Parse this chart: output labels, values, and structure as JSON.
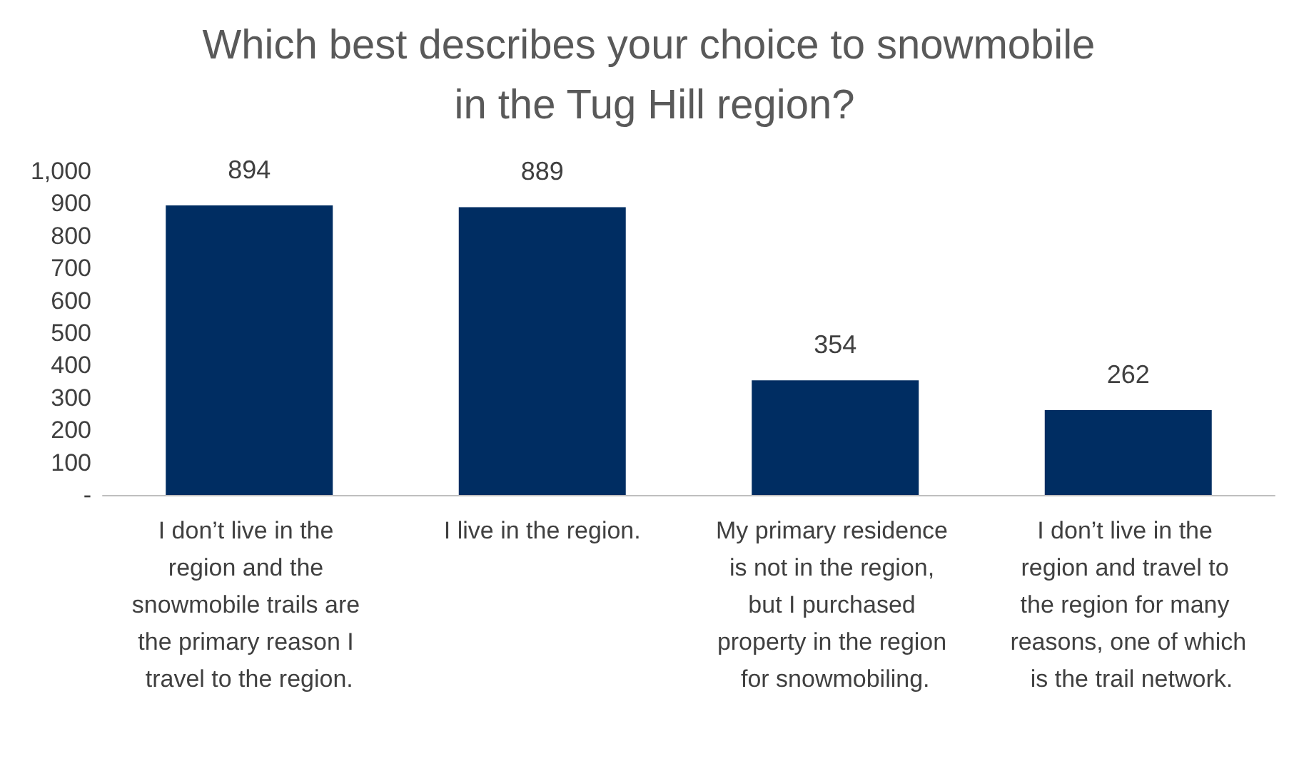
{
  "chart_data": {
    "type": "bar",
    "title": "Which best describes your choice to snowmobile in the Tug Hill region?",
    "categories": [
      "I don’t live in the region and the snowmobile trails are the primary reason I travel to the region.",
      "I live in the region.",
      "My primary residence is not in the region, but I purchased property in the region for snowmobiling.",
      "I don’t live in the region and travel to the region for many reasons, one of which is the trail network."
    ],
    "values": [
      894,
      889,
      354,
      262
    ],
    "color": "#002d62",
    "data_labels": true,
    "grid": false,
    "ylim": [
      0,
      1000
    ],
    "yticks": [
      {
        "value": 0,
        "label": "-"
      },
      100,
      200,
      300,
      400,
      500,
      600,
      700,
      800,
      900,
      {
        "value": 1000,
        "label": "1,000"
      }
    ]
  }
}
